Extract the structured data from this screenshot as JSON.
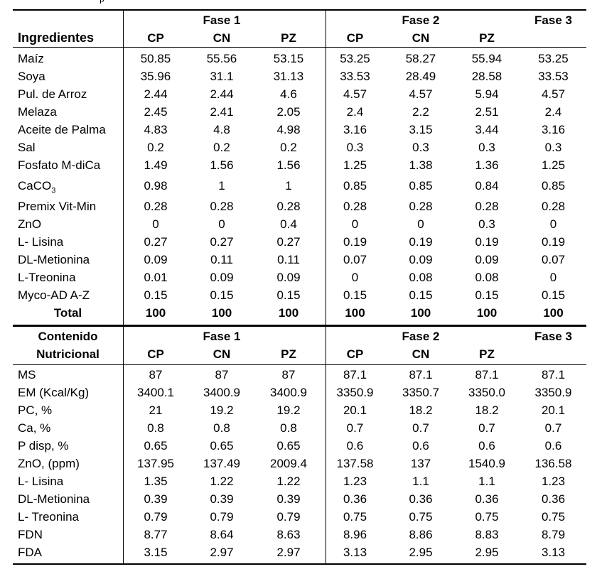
{
  "caption_fragment": "p",
  "phase_headers": {
    "fase1": "Fase 1",
    "fase2": "Fase 2",
    "fase3": "Fase 3"
  },
  "diet_headers": {
    "cp1": "CP",
    "cn1": "CN",
    "pz1": "PZ",
    "cp2": "CP",
    "cn2": "CN",
    "pz2": "PZ"
  },
  "ingredients_header": "Ingredientes",
  "ingredients": [
    {
      "name": "Maíz",
      "values": [
        "50.85",
        "55.56",
        "53.15",
        "53.25",
        "58.27",
        "55.94",
        "53.25"
      ]
    },
    {
      "name": "Soya",
      "values": [
        "35.96",
        "31.1",
        "31.13",
        "33.53",
        "28.49",
        "28.58",
        "33.53"
      ]
    },
    {
      "name": "Pul. de Arroz",
      "values": [
        "2.44",
        "2.44",
        "4.6",
        "4.57",
        "4.57",
        "5.94",
        "4.57"
      ]
    },
    {
      "name": "Melaza",
      "values": [
        "2.45",
        "2.41",
        "2.05",
        "2.4",
        "2.2",
        "2.51",
        "2.4"
      ]
    },
    {
      "name": "Aceite de Palma",
      "values": [
        "4.83",
        "4.8",
        "4.98",
        "3.16",
        "3.15",
        "3.44",
        "3.16"
      ]
    },
    {
      "name": "Sal",
      "values": [
        "0.2",
        "0.2",
        "0.2",
        "0.3",
        "0.3",
        "0.3",
        "0.3"
      ]
    },
    {
      "name": "Fosfato M-diCa",
      "values": [
        "1.49",
        "1.56",
        "1.56",
        "1.25",
        "1.38",
        "1.36",
        "1.25"
      ]
    },
    {
      "name": "CaCO",
      "sub": "3",
      "values": [
        "0.98",
        "1",
        "1",
        "0.85",
        "0.85",
        "0.84",
        "0.85"
      ]
    },
    {
      "name": "Premix Vit-Min",
      "values": [
        "0.28",
        "0.28",
        "0.28",
        "0.28",
        "0.28",
        "0.28",
        "0.28"
      ]
    },
    {
      "name": "ZnO",
      "values": [
        "0",
        "0",
        "0.4",
        "0",
        "0",
        "0.3",
        "0"
      ]
    },
    {
      "name": "L- Lisina",
      "values": [
        "0.27",
        "0.27",
        "0.27",
        "0.19",
        "0.19",
        "0.19",
        "0.19"
      ]
    },
    {
      "name": "DL-Metionina",
      "values": [
        "0.09",
        "0.11",
        "0.11",
        "0.07",
        "0.09",
        "0.09",
        "0.07"
      ]
    },
    {
      "name": "L-Treonina",
      "values": [
        "0.01",
        "0.09",
        "0.09",
        "0",
        "0.08",
        "0.08",
        "0"
      ]
    },
    {
      "name": "Myco-AD  A-Z",
      "values": [
        "0.15",
        "0.15",
        "0.15",
        "0.15",
        "0.15",
        "0.15",
        "0.15"
      ]
    }
  ],
  "total": {
    "name": "Total",
    "values": [
      "100",
      "100",
      "100",
      "100",
      "100",
      "100",
      "100"
    ]
  },
  "nutrition_header_line1": "Contenido",
  "nutrition_header_line2": "Nutricional",
  "nutrition": [
    {
      "name": "MS",
      "values": [
        "87",
        "87",
        "87",
        "87.1",
        "87.1",
        "87.1",
        "87.1"
      ]
    },
    {
      "name": "EM (Kcal/Kg)",
      "values": [
        "3400.1",
        "3400.9",
        "3400.9",
        "3350.9",
        "3350.7",
        "3350.0",
        "3350.9"
      ]
    },
    {
      "name": "PC, %",
      "values": [
        "21",
        "19.2",
        "19.2",
        "20.1",
        "18.2",
        "18.2",
        "20.1"
      ]
    },
    {
      "name": "Ca, %",
      "values": [
        "0.8",
        "0.8",
        "0.8",
        "0.7",
        "0.7",
        "0.7",
        "0.7"
      ]
    },
    {
      "name": "P disp, %",
      "values": [
        "0.65",
        "0.65",
        "0.65",
        "0.6",
        "0.6",
        "0.6",
        "0.6"
      ]
    },
    {
      "name": "ZnO, (ppm)",
      "values": [
        "137.95",
        "137.49",
        "2009.4",
        "137.58",
        "137",
        "1540.9",
        "136.58"
      ]
    },
    {
      "name": "L- Lisina",
      "values": [
        "1.35",
        "1.22",
        "1.22",
        "1.23",
        "1.1",
        "1.1",
        "1.23"
      ]
    },
    {
      "name": "DL-Metionina",
      "values": [
        "0.39",
        "0.39",
        "0.39",
        "0.36",
        "0.36",
        "0.36",
        "0.36"
      ]
    },
    {
      "name": "L- Treonina",
      "values": [
        "0.79",
        "0.79",
        "0.79",
        "0.75",
        "0.75",
        "0.75",
        "0.75"
      ]
    },
    {
      "name": "FDN",
      "values": [
        "8.77",
        "8.64",
        "8.63",
        "8.96",
        "8.86",
        "8.83",
        "8.79"
      ]
    },
    {
      "name": "FDA",
      "values": [
        "3.15",
        "2.97",
        "2.97",
        "3.13",
        "2.95",
        "2.95",
        "3.13"
      ]
    }
  ]
}
